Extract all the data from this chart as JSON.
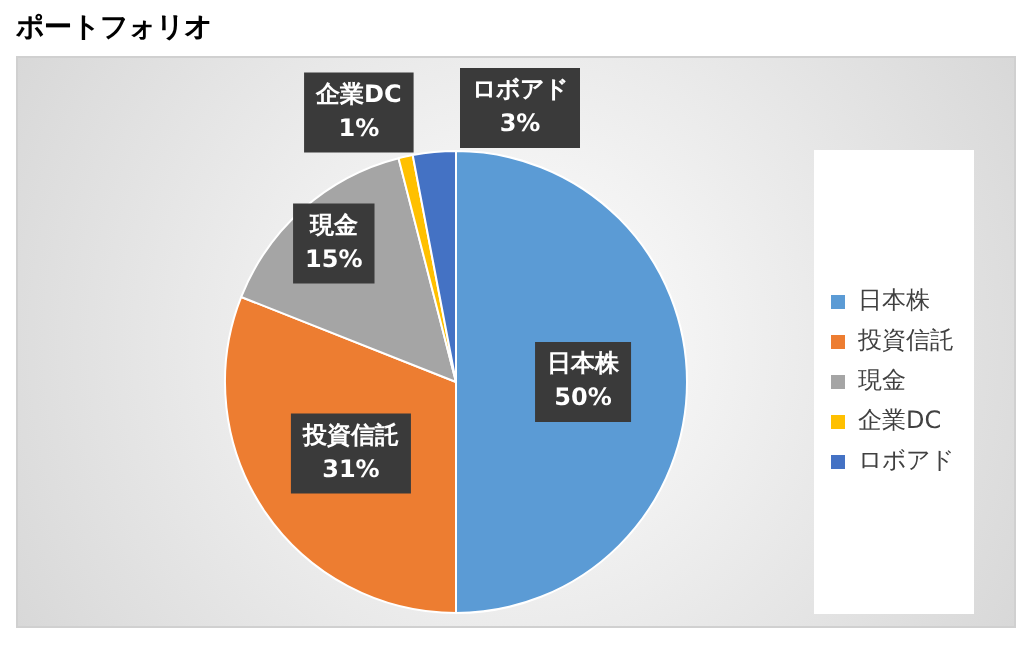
{
  "chart_data": {
    "type": "pie",
    "title": "ポートフォリオ",
    "categories": [
      "日本株",
      "投資信託",
      "現金",
      "企業DC",
      "ロボアド"
    ],
    "values": [
      50,
      31,
      15,
      1,
      3
    ],
    "colors": [
      "#5b9bd5",
      "#ed7d31",
      "#a5a5a5",
      "#ffc000",
      "#4472c4"
    ],
    "value_labels": [
      "50%",
      "31%",
      "15%",
      "1%",
      "3%"
    ],
    "legend": "right"
  }
}
